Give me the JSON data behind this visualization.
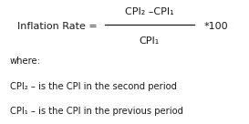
{
  "bg_color_top": "#e8e8e8",
  "bg_color_bottom": "#ffffff",
  "text_color": "#1a1a1a",
  "formula_label": "Inflation Rate =",
  "numerator": "CPI₂ –CPI₁",
  "denominator": "CPI₁",
  "multiplier": "*100",
  "where_label": "where:",
  "line1": "CPI₂ – is the CPI in the second period",
  "line2": "CPI₁ – is the CPI in the previous period",
  "font_size_formula": 8.0,
  "font_size_body": 7.2,
  "fig_width": 2.73,
  "fig_height": 1.36,
  "dpi": 100
}
